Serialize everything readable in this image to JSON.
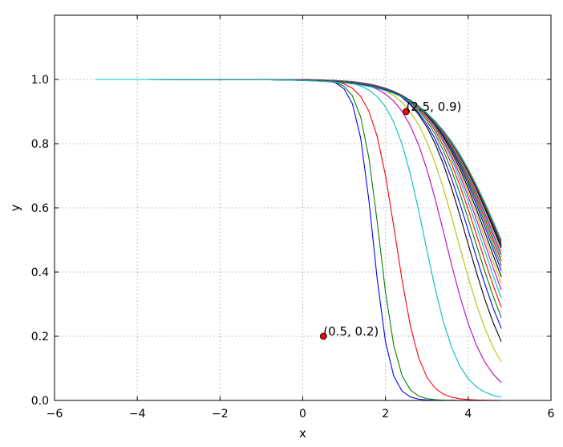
{
  "chart_data": {
    "type": "line",
    "title": "",
    "xlabel": "x",
    "ylabel": "y",
    "xlim": [
      -6,
      6
    ],
    "ylim": [
      0,
      1.2
    ],
    "xticks": [
      -6,
      -4,
      -2,
      0,
      2,
      4,
      6
    ],
    "yticks": [
      0.0,
      0.2,
      0.4,
      0.6,
      0.8,
      1.0
    ],
    "xtick_labels": [
      "−6",
      "−4",
      "−2",
      "0",
      "2",
      "4",
      "6"
    ],
    "ytick_labels": [
      "0.0",
      "0.2",
      "0.4",
      "0.6",
      "0.8",
      "1.0"
    ],
    "grid": true,
    "legend": "none",
    "x_range": [
      -5,
      4.8
    ],
    "x_step": 0.2,
    "family": "y = 1 - 1/(1 + exp(-k(x - c)))",
    "series_colors": [
      "#0000ff",
      "#008000",
      "#ff0000",
      "#00bfbf",
      "#bf00bf",
      "#bfbf00",
      "#000000"
    ],
    "series": [
      {
        "k": 5.0,
        "c": 1.7
      },
      {
        "k": 4.5,
        "c": 1.85
      },
      {
        "k": 3.4,
        "c": 2.25
      },
      {
        "k": 2.5,
        "c": 2.95
      },
      {
        "k": 2.1,
        "c": 3.45
      },
      {
        "k": 1.9,
        "c": 3.75
      },
      {
        "k": 1.8,
        "c": 3.97
      },
      {
        "k": 1.7,
        "c": 4.07
      },
      {
        "k": 1.65,
        "c": 4.16
      },
      {
        "k": 1.6,
        "c": 4.24
      },
      {
        "k": 1.55,
        "c": 4.31
      },
      {
        "k": 1.5,
        "c": 4.37
      },
      {
        "k": 1.46,
        "c": 4.42
      },
      {
        "k": 1.42,
        "c": 4.47
      },
      {
        "k": 1.39,
        "c": 4.52
      },
      {
        "k": 1.36,
        "c": 4.56
      },
      {
        "k": 1.33,
        "c": 4.6
      },
      {
        "k": 1.31,
        "c": 4.63
      },
      {
        "k": 1.29,
        "c": 4.66
      },
      {
        "k": 1.27,
        "c": 4.69
      },
      {
        "k": 1.25,
        "c": 4.72
      },
      {
        "k": 1.23,
        "c": 4.74
      },
      {
        "k": 1.21,
        "c": 4.76
      },
      {
        "k": 1.2,
        "c": 4.78
      },
      {
        "k": 1.19,
        "c": 4.8
      }
    ],
    "annotations": [
      {
        "x": 0.5,
        "y": 0.2,
        "label": "(0.5, 0.2)",
        "color": "#ff0000"
      },
      {
        "x": 2.5,
        "y": 0.9,
        "label": "(2.5, 0.9)",
        "color": "#ff0000"
      }
    ]
  }
}
